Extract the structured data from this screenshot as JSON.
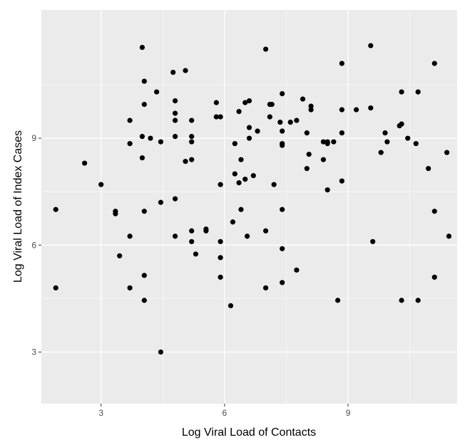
{
  "chart_data": {
    "type": "scatter",
    "title": "",
    "xlabel": "Log Viral Load of Contacts",
    "ylabel": "Log Viral Load of Index Cases",
    "xlim": [
      1.55,
      11.65
    ],
    "ylim": [
      1.55,
      12.6
    ],
    "x_ticks": [
      3,
      6,
      9
    ],
    "y_ticks": [
      3,
      6,
      9
    ],
    "x_tick_labels": [
      "3",
      "6",
      "9"
    ],
    "y_tick_labels": [
      "3",
      "6",
      "9"
    ],
    "grid": true,
    "colors": {
      "panel": "#ebebeb",
      "grid_major": "#ffffff",
      "point": "#000000",
      "tick_text": "#4d4d4d"
    },
    "points": [
      {
        "x": 1.9,
        "y": 7.0
      },
      {
        "x": 1.9,
        "y": 4.8
      },
      {
        "x": 2.6,
        "y": 8.3
      },
      {
        "x": 3.0,
        "y": 7.7
      },
      {
        "x": 3.35,
        "y": 6.95
      },
      {
        "x": 3.35,
        "y": 6.88
      },
      {
        "x": 3.45,
        "y": 5.7
      },
      {
        "x": 3.7,
        "y": 9.5
      },
      {
        "x": 3.7,
        "y": 8.85
      },
      {
        "x": 3.7,
        "y": 6.25
      },
      {
        "x": 3.7,
        "y": 4.8
      },
      {
        "x": 4.0,
        "y": 11.55
      },
      {
        "x": 4.0,
        "y": 9.05
      },
      {
        "x": 4.0,
        "y": 8.45
      },
      {
        "x": 4.05,
        "y": 10.6
      },
      {
        "x": 4.05,
        "y": 9.95
      },
      {
        "x": 4.05,
        "y": 6.95
      },
      {
        "x": 4.05,
        "y": 5.15
      },
      {
        "x": 4.05,
        "y": 4.45
      },
      {
        "x": 4.2,
        "y": 9.0
      },
      {
        "x": 4.35,
        "y": 10.3
      },
      {
        "x": 4.45,
        "y": 8.9
      },
      {
        "x": 4.45,
        "y": 7.2
      },
      {
        "x": 4.45,
        "y": 3.0
      },
      {
        "x": 4.75,
        "y": 10.85
      },
      {
        "x": 4.8,
        "y": 10.05
      },
      {
        "x": 4.8,
        "y": 9.7
      },
      {
        "x": 4.8,
        "y": 9.5
      },
      {
        "x": 4.8,
        "y": 9.05
      },
      {
        "x": 4.8,
        "y": 7.3
      },
      {
        "x": 4.8,
        "y": 6.25
      },
      {
        "x": 5.05,
        "y": 10.9
      },
      {
        "x": 5.05,
        "y": 8.35
      },
      {
        "x": 5.2,
        "y": 9.5
      },
      {
        "x": 5.2,
        "y": 9.05
      },
      {
        "x": 5.2,
        "y": 8.9
      },
      {
        "x": 5.2,
        "y": 8.4
      },
      {
        "x": 5.2,
        "y": 6.4
      },
      {
        "x": 5.2,
        "y": 6.1
      },
      {
        "x": 5.3,
        "y": 5.75
      },
      {
        "x": 5.55,
        "y": 6.45
      },
      {
        "x": 5.55,
        "y": 6.4
      },
      {
        "x": 5.8,
        "y": 10.0
      },
      {
        "x": 5.8,
        "y": 9.6
      },
      {
        "x": 5.9,
        "y": 9.6
      },
      {
        "x": 5.9,
        "y": 7.7
      },
      {
        "x": 5.9,
        "y": 6.1
      },
      {
        "x": 5.9,
        "y": 5.65
      },
      {
        "x": 5.9,
        "y": 5.1
      },
      {
        "x": 6.15,
        "y": 4.3
      },
      {
        "x": 6.2,
        "y": 6.65
      },
      {
        "x": 6.25,
        "y": 8.85
      },
      {
        "x": 6.25,
        "y": 8.0
      },
      {
        "x": 6.35,
        "y": 9.75
      },
      {
        "x": 6.35,
        "y": 7.75
      },
      {
        "x": 6.4,
        "y": 8.4
      },
      {
        "x": 6.4,
        "y": 7.0
      },
      {
        "x": 6.5,
        "y": 10.0
      },
      {
        "x": 6.5,
        "y": 7.85
      },
      {
        "x": 6.55,
        "y": 6.25
      },
      {
        "x": 6.6,
        "y": 10.05
      },
      {
        "x": 6.6,
        "y": 9.3
      },
      {
        "x": 6.6,
        "y": 9.0
      },
      {
        "x": 6.7,
        "y": 7.95
      },
      {
        "x": 6.8,
        "y": 9.2
      },
      {
        "x": 7.0,
        "y": 11.5
      },
      {
        "x": 7.0,
        "y": 6.4
      },
      {
        "x": 7.0,
        "y": 4.8
      },
      {
        "x": 7.1,
        "y": 9.95
      },
      {
        "x": 7.1,
        "y": 9.6
      },
      {
        "x": 7.15,
        "y": 9.95
      },
      {
        "x": 7.2,
        "y": 7.7
      },
      {
        "x": 7.35,
        "y": 9.45
      },
      {
        "x": 7.4,
        "y": 10.25
      },
      {
        "x": 7.4,
        "y": 9.2
      },
      {
        "x": 7.4,
        "y": 8.85
      },
      {
        "x": 7.4,
        "y": 8.8
      },
      {
        "x": 7.4,
        "y": 7.0
      },
      {
        "x": 7.4,
        "y": 5.9
      },
      {
        "x": 7.4,
        "y": 4.95
      },
      {
        "x": 7.6,
        "y": 9.45
      },
      {
        "x": 7.75,
        "y": 9.5
      },
      {
        "x": 7.75,
        "y": 5.3
      },
      {
        "x": 7.9,
        "y": 10.1
      },
      {
        "x": 8.0,
        "y": 9.15
      },
      {
        "x": 8.0,
        "y": 8.15
      },
      {
        "x": 8.05,
        "y": 8.55
      },
      {
        "x": 8.1,
        "y": 9.9
      },
      {
        "x": 8.1,
        "y": 9.8
      },
      {
        "x": 8.4,
        "y": 8.9
      },
      {
        "x": 8.4,
        "y": 8.4
      },
      {
        "x": 8.5,
        "y": 8.9
      },
      {
        "x": 8.5,
        "y": 8.85
      },
      {
        "x": 8.5,
        "y": 7.55
      },
      {
        "x": 8.65,
        "y": 8.9
      },
      {
        "x": 8.75,
        "y": 4.45
      },
      {
        "x": 8.85,
        "y": 11.1
      },
      {
        "x": 8.85,
        "y": 9.8
      },
      {
        "x": 8.85,
        "y": 9.15
      },
      {
        "x": 8.85,
        "y": 7.8
      },
      {
        "x": 9.2,
        "y": 9.8
      },
      {
        "x": 9.55,
        "y": 11.6
      },
      {
        "x": 9.55,
        "y": 9.85
      },
      {
        "x": 9.6,
        "y": 6.1
      },
      {
        "x": 9.8,
        "y": 8.6
      },
      {
        "x": 9.9,
        "y": 9.15
      },
      {
        "x": 9.95,
        "y": 8.9
      },
      {
        "x": 10.25,
        "y": 9.35
      },
      {
        "x": 10.3,
        "y": 10.3
      },
      {
        "x": 10.3,
        "y": 9.4
      },
      {
        "x": 10.3,
        "y": 4.45
      },
      {
        "x": 10.45,
        "y": 9.0
      },
      {
        "x": 10.65,
        "y": 8.85
      },
      {
        "x": 10.7,
        "y": 10.3
      },
      {
        "x": 10.7,
        "y": 4.45
      },
      {
        "x": 10.95,
        "y": 8.15
      },
      {
        "x": 11.1,
        "y": 11.1
      },
      {
        "x": 11.1,
        "y": 6.95
      },
      {
        "x": 11.1,
        "y": 5.1
      },
      {
        "x": 11.4,
        "y": 8.6
      },
      {
        "x": 11.45,
        "y": 6.25
      }
    ]
  }
}
